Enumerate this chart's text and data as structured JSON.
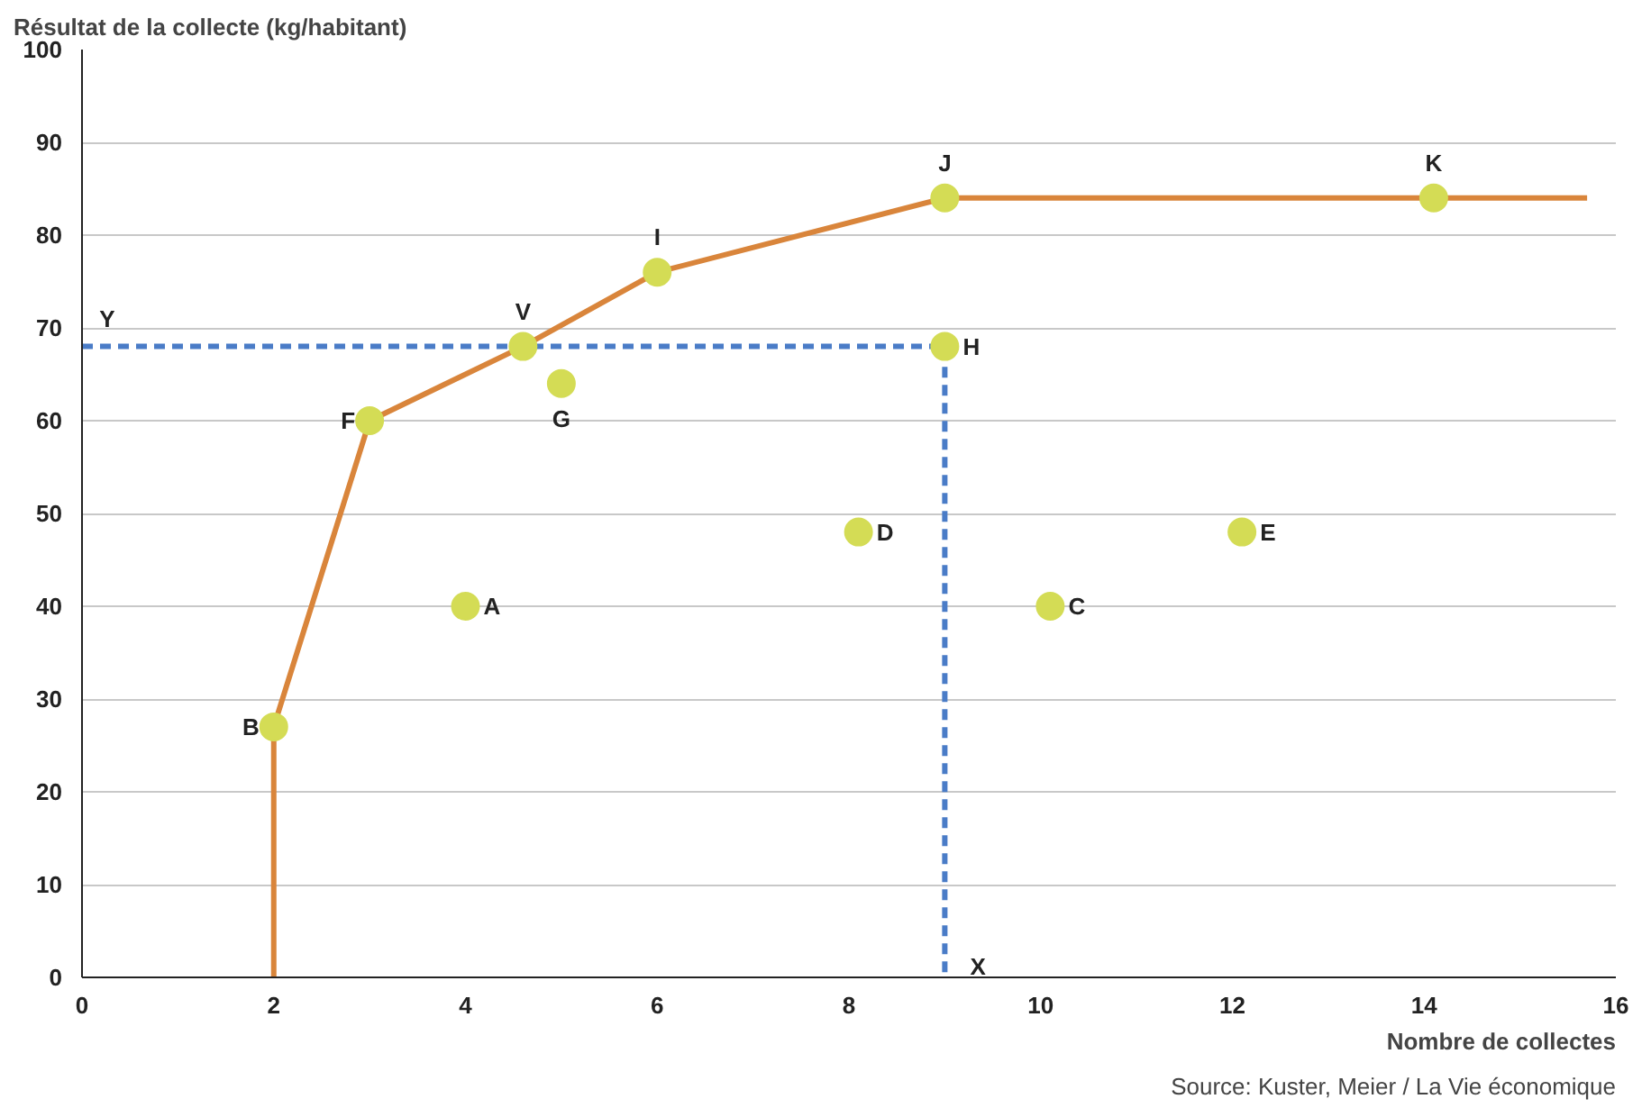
{
  "chart_data": {
    "type": "scatter",
    "xlabel": "Nombre de collectes",
    "ylabel": "Résultat de la collecte (kg/habitant)",
    "xlim": [
      0,
      16
    ],
    "xticks": [
      0,
      2,
      4,
      6,
      8,
      10,
      12,
      14,
      16
    ],
    "ylim": [
      0,
      100
    ],
    "yticks": [
      0,
      10,
      20,
      30,
      40,
      50,
      60,
      70,
      80,
      90,
      100
    ],
    "grid": "y",
    "marker": "circle",
    "series": [
      {
        "type": "line",
        "marker": "none",
        "color": "#d9853b",
        "x": [
          2,
          2,
          3,
          4.6,
          6,
          9,
          15.7
        ],
        "values": [
          0,
          27,
          60,
          68,
          76,
          84,
          84
        ]
      },
      {
        "type": "line",
        "marker": "none",
        "color": "#4a7cc7",
        "line_style": "dashed",
        "x": [
          0,
          9,
          9
        ],
        "values": [
          68,
          68,
          0
        ]
      },
      {
        "color": "#d4dc55",
        "x": [
          2,
          4,
          3,
          4.6,
          5,
          6,
          9,
          9,
          8.1,
          10.1,
          12.1,
          14.1
        ],
        "values": [
          27,
          40,
          60,
          68,
          64,
          76,
          84,
          68,
          48,
          40,
          48,
          84
        ]
      }
    ],
    "annotations": [
      {
        "text": "B",
        "x": 2,
        "y": 27
      },
      {
        "text": "A",
        "x": 4,
        "y": 40
      },
      {
        "text": "F",
        "x": 3,
        "y": 60
      },
      {
        "text": "V",
        "x": 4.6,
        "y": 68
      },
      {
        "text": "G",
        "x": 5,
        "y": 64
      },
      {
        "text": "I",
        "x": 6,
        "y": 76
      },
      {
        "text": "J",
        "x": 9,
        "y": 84
      },
      {
        "text": "H",
        "x": 9,
        "y": 68
      },
      {
        "text": "D",
        "x": 8.1,
        "y": 48
      },
      {
        "text": "C",
        "x": 10.1,
        "y": 40
      },
      {
        "text": "E",
        "x": 12.1,
        "y": 48
      },
      {
        "text": "K",
        "x": 14.1,
        "y": 84
      },
      {
        "text": "Y",
        "x": 0,
        "y": 68
      },
      {
        "text": "X",
        "x": 9,
        "y": 0
      },
      "Source: Kuster, Meier / La Vie économique"
    ]
  }
}
